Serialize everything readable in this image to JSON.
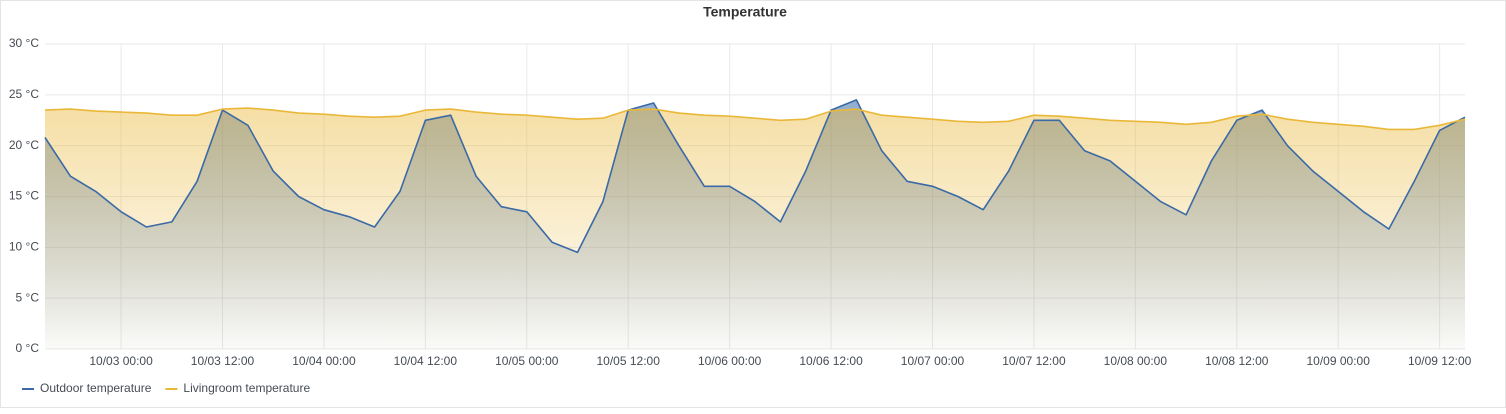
{
  "chart_data": {
    "type": "area",
    "title": "Temperature",
    "x": [
      "10/02 15:00",
      "10/02 18:00",
      "10/02 21:00",
      "10/03 00:00",
      "10/03 03:00",
      "10/03 06:00",
      "10/03 09:00",
      "10/03 12:00",
      "10/03 15:00",
      "10/03 18:00",
      "10/03 21:00",
      "10/04 00:00",
      "10/04 03:00",
      "10/04 06:00",
      "10/04 09:00",
      "10/04 12:00",
      "10/04 15:00",
      "10/04 18:00",
      "10/04 21:00",
      "10/05 00:00",
      "10/05 03:00",
      "10/05 06:00",
      "10/05 09:00",
      "10/05 12:00",
      "10/05 15:00",
      "10/05 18:00",
      "10/05 21:00",
      "10/06 00:00",
      "10/06 03:00",
      "10/06 06:00",
      "10/06 09:00",
      "10/06 12:00",
      "10/06 15:00",
      "10/06 18:00",
      "10/06 21:00",
      "10/07 00:00",
      "10/07 03:00",
      "10/07 06:00",
      "10/07 09:00",
      "10/07 12:00",
      "10/07 15:00",
      "10/07 18:00",
      "10/07 21:00",
      "10/08 00:00",
      "10/08 03:00",
      "10/08 06:00",
      "10/08 09:00",
      "10/08 12:00",
      "10/08 15:00",
      "10/08 18:00",
      "10/08 21:00",
      "10/09 00:00",
      "10/09 03:00",
      "10/09 06:00",
      "10/09 09:00",
      "10/09 12:00",
      "10/09 15:00"
    ],
    "series": [
      {
        "name": "Outdoor temperature",
        "color": "#3b6aa6",
        "values": [
          20.8,
          17.0,
          15.5,
          13.5,
          12.0,
          12.5,
          16.5,
          23.5,
          22.0,
          17.5,
          15.0,
          13.7,
          13.0,
          12.0,
          15.5,
          22.5,
          23.0,
          17.0,
          14.0,
          13.5,
          10.5,
          9.5,
          14.5,
          23.5,
          24.2,
          20.0,
          16.0,
          16.0,
          14.5,
          12.5,
          17.5,
          23.5,
          24.5,
          19.5,
          16.5,
          16.0,
          15.0,
          13.7,
          17.5,
          22.5,
          22.5,
          19.5,
          18.5,
          16.5,
          14.5,
          13.2,
          18.5,
          22.5,
          23.5,
          20.0,
          17.5,
          15.5,
          13.5,
          11.8,
          16.5,
          21.5,
          22.8
        ]
      },
      {
        "name": "Livingroom temperature",
        "color": "#eab839",
        "values": [
          23.5,
          23.6,
          23.4,
          23.3,
          23.2,
          23.0,
          23.0,
          23.6,
          23.7,
          23.5,
          23.2,
          23.1,
          22.9,
          22.8,
          22.9,
          23.5,
          23.6,
          23.3,
          23.1,
          23.0,
          22.8,
          22.6,
          22.7,
          23.5,
          23.6,
          23.2,
          23.0,
          22.9,
          22.7,
          22.5,
          22.6,
          23.4,
          23.6,
          23.0,
          22.8,
          22.6,
          22.4,
          22.3,
          22.4,
          23.0,
          22.9,
          22.7,
          22.5,
          22.4,
          22.3,
          22.1,
          22.3,
          22.9,
          23.1,
          22.6,
          22.3,
          22.1,
          21.9,
          21.6,
          21.6,
          22.0,
          22.6
        ]
      }
    ],
    "xlim": [
      "10/02 15:00",
      "10/09 15:00"
    ],
    "xticks": [
      "10/03 00:00",
      "10/03 12:00",
      "10/04 00:00",
      "10/04 12:00",
      "10/05 00:00",
      "10/05 12:00",
      "10/06 00:00",
      "10/06 12:00",
      "10/07 00:00",
      "10/07 12:00",
      "10/08 00:00",
      "10/08 12:00",
      "10/09 00:00",
      "10/09 12:00"
    ],
    "ylim": [
      0,
      30
    ],
    "yticks": [
      {
        "value": 0,
        "label": "0 °C"
      },
      {
        "value": 5,
        "label": "5 °C"
      },
      {
        "value": 10,
        "label": "10 °C"
      },
      {
        "value": 15,
        "label": "15 °C"
      },
      {
        "value": 20,
        "label": "20 °C"
      },
      {
        "value": 25,
        "label": "25 °C"
      },
      {
        "value": 30,
        "label": "30 °C"
      }
    ],
    "grid": true,
    "legend": "bottom-left"
  }
}
